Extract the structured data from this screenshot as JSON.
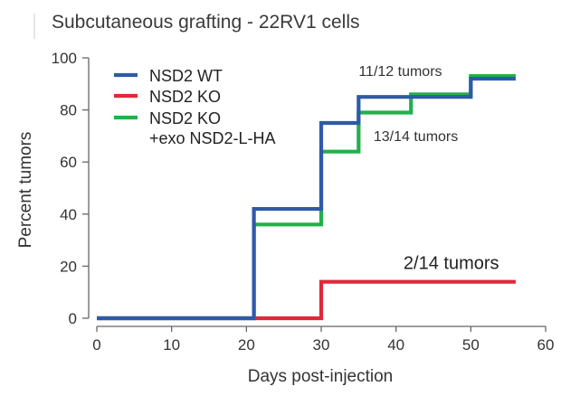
{
  "chart_data": {
    "type": "line",
    "subtype": "step",
    "title": "Subcutaneous grafting - 22RV1 cells",
    "xlabel": "Days post-injection",
    "ylabel": "Percent tumors",
    "xlim": [
      0,
      60
    ],
    "ylim": [
      0,
      100
    ],
    "xticks": [
      0,
      10,
      20,
      30,
      40,
      50,
      60
    ],
    "yticks": [
      0,
      20,
      40,
      60,
      80,
      100
    ],
    "grid": false,
    "legend_position": "top-left",
    "series": [
      {
        "name": "NSD2 WT",
        "color": "#2e5aa8",
        "x": [
          0,
          21,
          30,
          35,
          50,
          56
        ],
        "y": [
          0,
          42,
          75,
          85,
          92,
          92
        ]
      },
      {
        "name": "NSD2 KO",
        "color": "#e0283a",
        "x": [
          0,
          30,
          56
        ],
        "y": [
          0,
          14,
          14
        ]
      },
      {
        "name": "NSD2 KO\n+exo NSD2-L-HA",
        "color": "#22b04b",
        "x": [
          0,
          21,
          30,
          35,
          42,
          50,
          56
        ],
        "y": [
          0,
          36,
          64,
          79,
          86,
          93,
          93
        ]
      }
    ],
    "annotations": [
      {
        "text": "11/12 tumors",
        "x": 35,
        "y": 93,
        "size": "normal"
      },
      {
        "text": "13/14 tumors",
        "x": 37,
        "y": 68,
        "size": "normal"
      },
      {
        "text": "2/14 tumors",
        "x": 41,
        "y": 19,
        "size": "large"
      }
    ]
  }
}
